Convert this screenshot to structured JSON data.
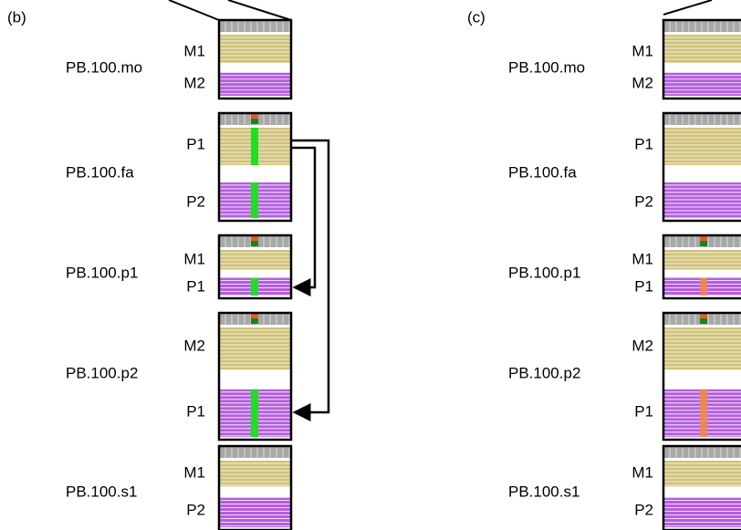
{
  "panels": [
    {
      "label": "(b)",
      "samples": [
        {
          "name": "PB.100.mo",
          "haplotypes": [
            "M1",
            "M2"
          ]
        },
        {
          "name": "PB.100.fa",
          "haplotypes": [
            "P1",
            "P2"
          ]
        },
        {
          "name": "PB.100.p1",
          "haplotypes": [
            "M1",
            "P1"
          ]
        },
        {
          "name": "PB.100.p2",
          "haplotypes": [
            "M2",
            "P1"
          ]
        },
        {
          "name": "PB.100.s1",
          "haplotypes": [
            "M1",
            "P2"
          ]
        }
      ]
    },
    {
      "label": "(c)",
      "samples": [
        {
          "name": "PB.100.mo",
          "haplotypes": [
            "M1",
            "M2"
          ]
        },
        {
          "name": "PB.100.fa",
          "haplotypes": [
            "P1",
            "P2"
          ]
        },
        {
          "name": "PB.100.p1",
          "haplotypes": [
            "M1",
            "P1"
          ]
        },
        {
          "name": "PB.100.p2",
          "haplotypes": [
            "M2",
            "P1"
          ]
        },
        {
          "name": "PB.100.s1",
          "haplotypes": [
            "M1",
            "P2"
          ]
        }
      ]
    }
  ]
}
